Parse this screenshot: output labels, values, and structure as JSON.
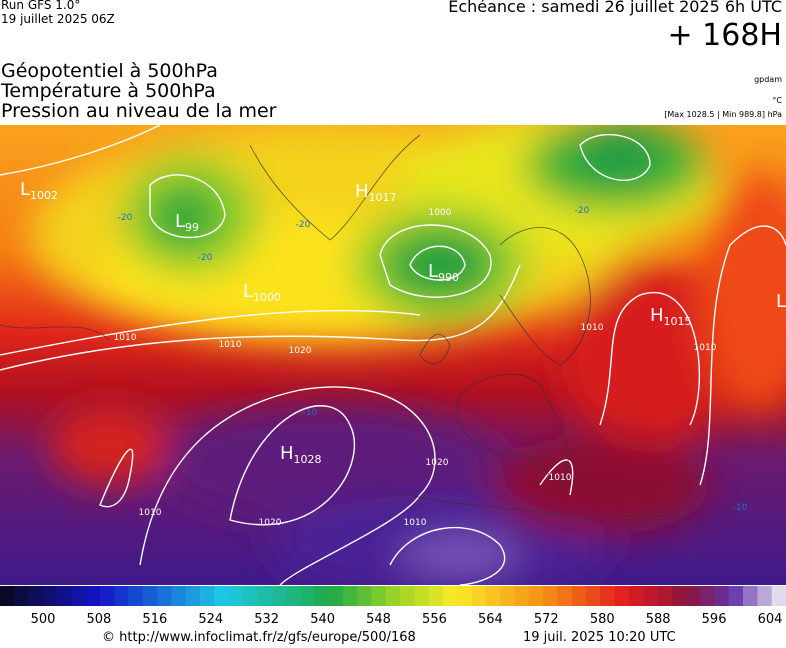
{
  "header": {
    "run": "Run GFS 1.0°",
    "run_date": "19 juillet 2025 06Z",
    "valid": "Echéance : samedi 26 juillet 2025 6h UTC",
    "lead": "+ 168H"
  },
  "titles": [
    "Géopotentiel à 500hPa",
    "Température à 500hPa",
    "Pression au niveau de la mer"
  ],
  "units": {
    "geopotential": "gpdam",
    "temperature": "°C",
    "pressure": "[Max 1028.5 | Min 989.8] hPa"
  },
  "centers": [
    {
      "letter": "L",
      "value": "1002"
    },
    {
      "letter": "L",
      "value": "99"
    },
    {
      "letter": "H",
      "value": "1017"
    },
    {
      "letter": "L",
      "value": "990"
    },
    {
      "letter": "L",
      "value": "1000"
    },
    {
      "letter": "H",
      "value": "1015"
    },
    {
      "letter": "H",
      "value": "1028"
    },
    {
      "letter": "L",
      "value": ""
    }
  ],
  "contour_labels": [
    "1010",
    "1010",
    "1020",
    "1000",
    "1010",
    "1020",
    "1010",
    "1020",
    "1010",
    "1010",
    "1010",
    "-20",
    "-20",
    "-20",
    "-20",
    "-10",
    "-10"
  ],
  "colorbar": {
    "ticks": [
      "500",
      "508",
      "516",
      "524",
      "532",
      "540",
      "548",
      "556",
      "564",
      "572",
      "580",
      "588",
      "596",
      "604"
    ]
  },
  "footer": {
    "source": "© http://www.infoclimat.fr/z/gfs/europe/500/168",
    "generated": "19 juil. 2025 10:20 UTC"
  }
}
